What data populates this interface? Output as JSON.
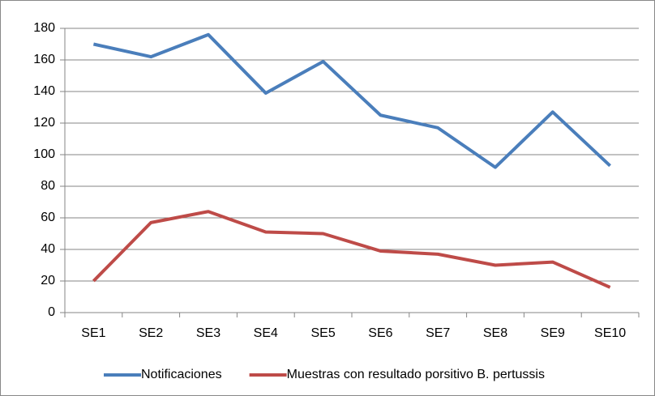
{
  "chart_data": {
    "type": "line",
    "categories": [
      "SE1",
      "SE2",
      "SE3",
      "SE4",
      "SE5",
      "SE6",
      "SE7",
      "SE8",
      "SE9",
      "SE10"
    ],
    "series": [
      {
        "name": "Notificaciones",
        "color": "#4a7ebb",
        "values": [
          170,
          162,
          176,
          139,
          159,
          125,
          117,
          92,
          127,
          93
        ]
      },
      {
        "name": "Muestras con resultado porsitivo B. pertussis",
        "color": "#be4b48",
        "values": [
          20,
          57,
          64,
          51,
          50,
          39,
          37,
          30,
          32,
          16
        ]
      }
    ],
    "ylim": [
      0,
      180
    ],
    "yticks": [
      0,
      20,
      40,
      60,
      80,
      100,
      120,
      140,
      160,
      180
    ],
    "grid": true,
    "legend": "bottom"
  }
}
